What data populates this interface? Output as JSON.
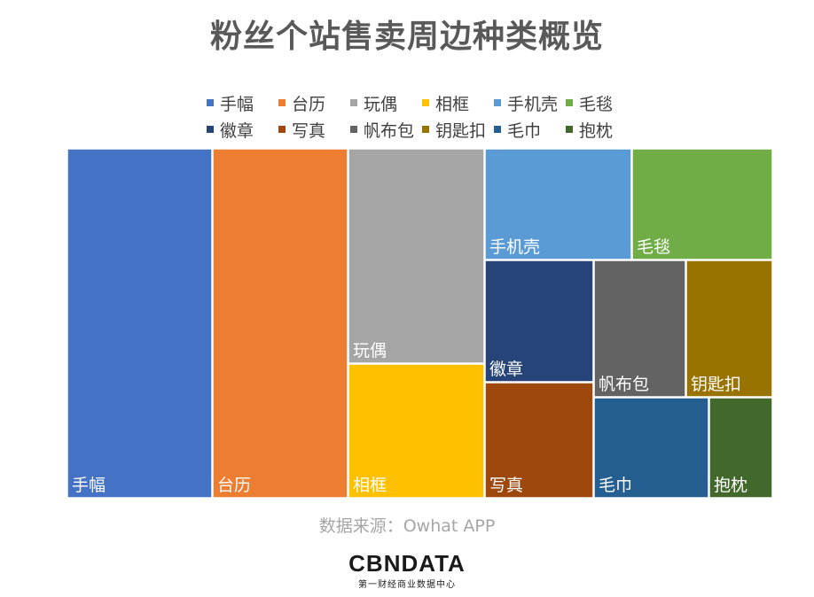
{
  "chart_data": {
    "type": "treemap",
    "title": "粉丝个站售卖周边种类概览",
    "legend_position": "top",
    "categories": [
      "手幅",
      "台历",
      "玩偶",
      "相框",
      "手机壳",
      "毛毯",
      "徽章",
      "写真",
      "帆布包",
      "钥匙扣",
      "毛巾",
      "抱枕"
    ],
    "colors": [
      "#4472C4",
      "#ED7D31",
      "#A5A5A5",
      "#FFC000",
      "#5B9BD5",
      "#70AD47",
      "#264478",
      "#9E480E",
      "#636363",
      "#997300",
      "#255E91",
      "#43682B"
    ]
  },
  "source": "数据来源：Owhat APP",
  "logo": {
    "main": "CBNDATA",
    "sub": "第一财经商业数据中心"
  }
}
